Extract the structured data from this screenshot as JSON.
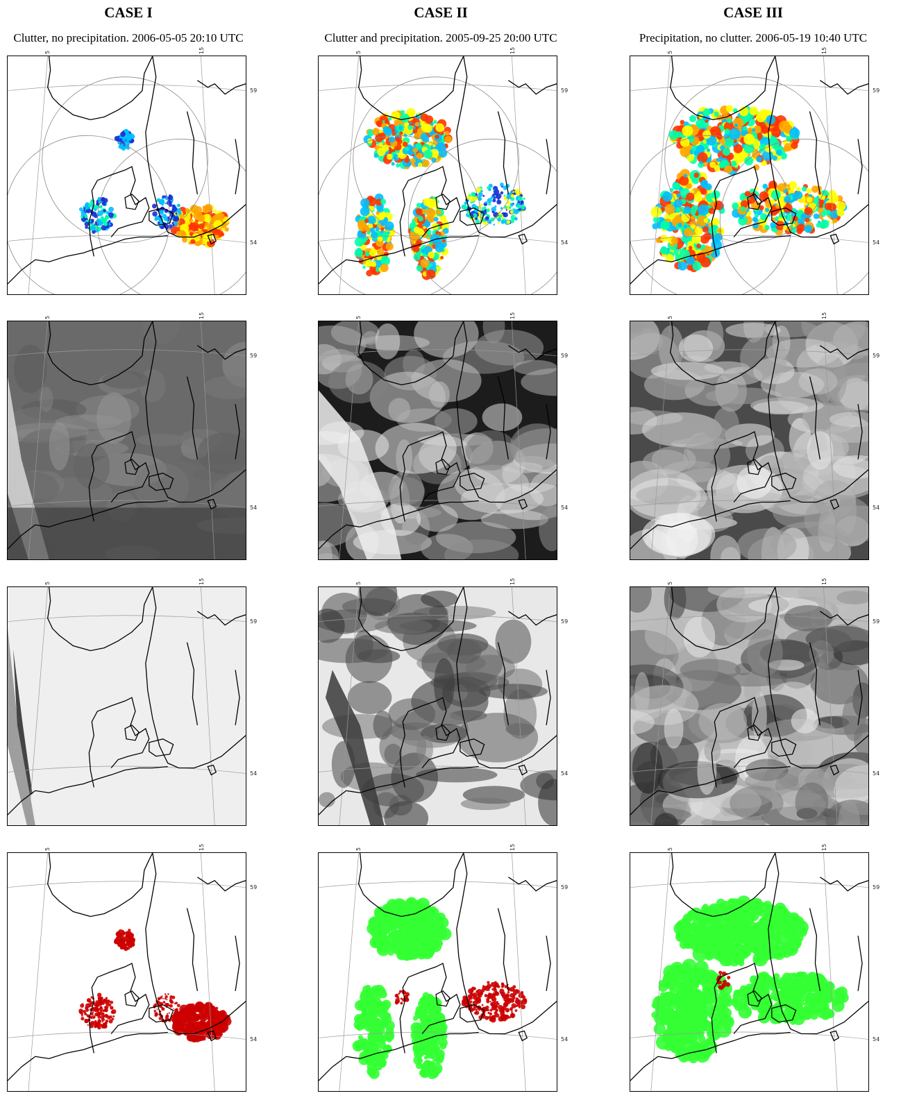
{
  "cases": [
    {
      "title": "CASE I",
      "subtitle": "Clutter, no precipitation. 2006-05-05 20:10 UTC"
    },
    {
      "title": "CASE II",
      "subtitle": "Clutter and precipitation. 2005-09-25 20:00 UTC"
    },
    {
      "title": "CASE III",
      "subtitle": "Precipitation, no clutter. 2006-05-19 10:40 UTC"
    }
  ],
  "ticks": {
    "lon_left": "5",
    "lon_right": "15",
    "lat_top": "59",
    "lat_bottom": "54"
  },
  "colors": {
    "precip_class": "#33ff33",
    "clutter_class": "#cc0000",
    "radar_low": "#00bfff",
    "radar_mid": "#ffff00",
    "radar_high": "#ff3300",
    "radar_clutter": "#1a2bd6"
  }
}
